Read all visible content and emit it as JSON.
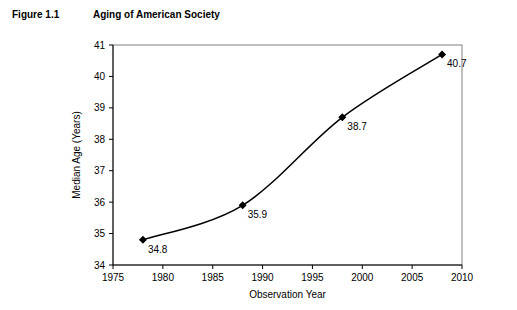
{
  "chart_data": {
    "type": "line",
    "figure_label": "Figure 1.1",
    "title": "Aging of American Society",
    "x_label": "Observation Year",
    "y_label": "Median Age (Years)",
    "x": [
      1978,
      1988,
      1998,
      2008
    ],
    "values": [
      34.8,
      35.9,
      38.7,
      40.7
    ],
    "color": "#000000",
    "marker": "diamond",
    "line_style": "solid",
    "data_labels": true,
    "grid": false,
    "xlim": [
      1975,
      2010
    ],
    "xticks": [
      1975,
      1980,
      1985,
      1990,
      1995,
      2000,
      2005,
      2010
    ],
    "ylim": [
      34,
      41
    ],
    "yticks": [
      34,
      35,
      36,
      37,
      38,
      39,
      40,
      41
    ]
  }
}
